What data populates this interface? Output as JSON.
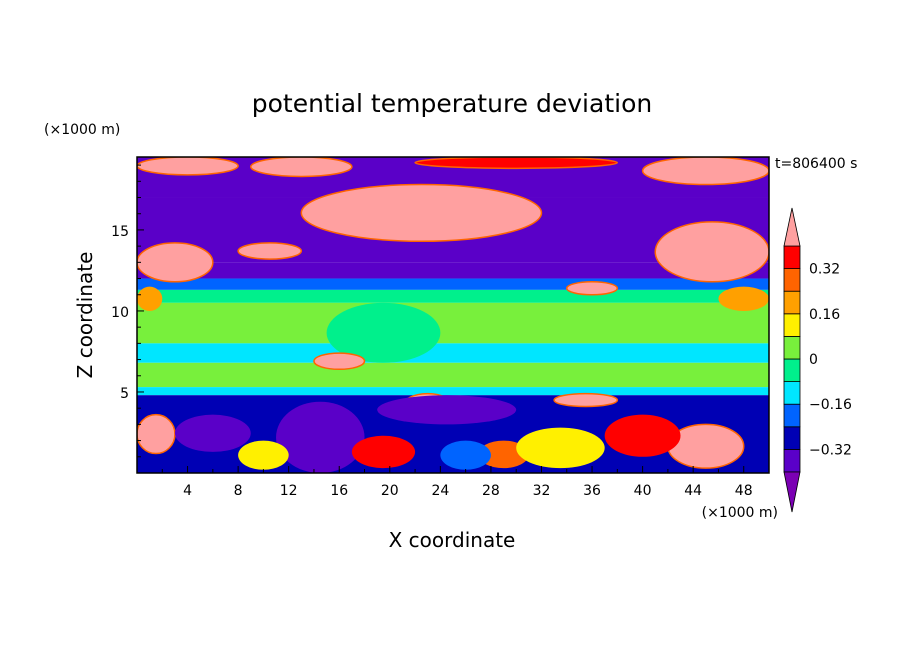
{
  "chart_data": {
    "type": "heatmap",
    "title": "potential temperature deviation",
    "xlabel": "X coordinate",
    "ylabel": "Z coordinate",
    "x_unit": "(×1000 m)",
    "y_unit": "(×1000 m)",
    "time_label": "t=806400 s",
    "xlim": [
      0,
      50
    ],
    "ylim": [
      0,
      19.5
    ],
    "x_ticks": [
      4,
      8,
      12,
      16,
      20,
      24,
      28,
      32,
      36,
      40,
      44,
      48
    ],
    "y_ticks": [
      5,
      10,
      15
    ],
    "colorbar": {
      "levels": [
        -0.4,
        -0.32,
        -0.24,
        -0.16,
        -0.08,
        0,
        0.08,
        0.16,
        0.24,
        0.32,
        0.4
      ],
      "labeled_levels": [
        0.32,
        0.16,
        0,
        -0.16,
        -0.32
      ],
      "labels": [
        "0.32",
        "0.16",
        "0",
        "−0.16",
        "−0.32"
      ],
      "colors": [
        "#7b00b4",
        "#5a00c8",
        "#0000b4",
        "#0064ff",
        "#00e6ff",
        "#00f08c",
        "#78f03c",
        "#fff000",
        "#ffa000",
        "#ff6400",
        "#ff0000",
        "#ffa0a0"
      ],
      "extend": "both"
    },
    "bands": [
      {
        "z": [
          17.0,
          19.5
        ],
        "value": -0.4
      },
      {
        "z": [
          13.0,
          17.0
        ],
        "value": -0.4
      },
      {
        "z": [
          12.0,
          13.0
        ],
        "value": -0.36
      },
      {
        "z": [
          11.3,
          12.0
        ],
        "value": -0.24
      },
      {
        "z": [
          10.5,
          11.3
        ],
        "value": -0.02
      },
      {
        "z": [
          8.0,
          10.5
        ],
        "value": 0.02
      },
      {
        "z": [
          6.8,
          8.0
        ],
        "value": -0.12
      },
      {
        "z": [
          5.3,
          6.8
        ],
        "value": 0.04
      },
      {
        "z": [
          4.8,
          5.3
        ],
        "value": -0.12
      },
      {
        "z": [
          0,
          4.8
        ],
        "value": -0.3
      }
    ],
    "patches": [
      {
        "x": [
          0,
          8
        ],
        "z": [
          18.4,
          19.5
        ],
        "value": 0.44
      },
      {
        "x": [
          9,
          17
        ],
        "z": [
          18.3,
          19.5
        ],
        "value": 0.44
      },
      {
        "x": [
          22,
          38
        ],
        "z": [
          18.8,
          19.5
        ],
        "value": 0.36
      },
      {
        "x": [
          40,
          50
        ],
        "z": [
          17.8,
          19.5
        ],
        "value": 0.44
      },
      {
        "x": [
          13,
          32
        ],
        "z": [
          14.3,
          17.8
        ],
        "value": 0.44
      },
      {
        "x": [
          0,
          6
        ],
        "z": [
          11.8,
          14.2
        ],
        "value": 0.44
      },
      {
        "x": [
          8,
          13
        ],
        "z": [
          13.2,
          14.2
        ],
        "value": 0.44
      },
      {
        "x": [
          41,
          50
        ],
        "z": [
          11.8,
          15.5
        ],
        "value": 0.44
      },
      {
        "x": [
          34,
          38
        ],
        "z": [
          11.0,
          11.8
        ],
        "value": 0.44
      },
      {
        "x": [
          0,
          2
        ],
        "z": [
          10.0,
          11.5
        ],
        "value": 0.16
      },
      {
        "x": [
          46,
          50
        ],
        "z": [
          10.0,
          11.5
        ],
        "value": 0.16
      },
      {
        "x": [
          15,
          24
        ],
        "z": [
          6.8,
          10.5
        ],
        "value": -0.08
      },
      {
        "x": [
          14,
          18
        ],
        "z": [
          6.4,
          7.4
        ],
        "value": 0.44
      },
      {
        "x": [
          21,
          25
        ],
        "z": [
          3.3,
          4.9
        ],
        "value": 0.44
      },
      {
        "x": [
          33,
          38
        ],
        "z": [
          4.1,
          4.9
        ],
        "value": 0.44
      },
      {
        "x": [
          0,
          3
        ],
        "z": [
          1.2,
          3.6
        ],
        "value": 0.44
      },
      {
        "x": [
          42,
          48
        ],
        "z": [
          0.3,
          3.0
        ],
        "value": 0.44
      },
      {
        "x": [
          3,
          9
        ],
        "z": [
          1.3,
          3.6
        ],
        "value": -0.36
      },
      {
        "x": [
          11,
          18
        ],
        "z": [
          0.0,
          4.4
        ],
        "value": -0.4
      },
      {
        "x": [
          19,
          30
        ],
        "z": [
          3.0,
          4.8
        ],
        "value": -0.4
      },
      {
        "x": [
          17,
          22
        ],
        "z": [
          0.3,
          2.3
        ],
        "value": 0.32
      },
      {
        "x": [
          27,
          31
        ],
        "z": [
          0.3,
          2.0
        ],
        "value": 0.24
      },
      {
        "x": [
          37,
          43
        ],
        "z": [
          1.0,
          3.6
        ],
        "value": 0.32
      },
      {
        "x": [
          30,
          37
        ],
        "z": [
          0.3,
          2.8
        ],
        "value": 0.08
      },
      {
        "x": [
          24,
          28
        ],
        "z": [
          0.2,
          2.0
        ],
        "value": -0.24
      },
      {
        "x": [
          8,
          12
        ],
        "z": [
          0.2,
          2.0
        ],
        "value": 0.08
      }
    ]
  }
}
